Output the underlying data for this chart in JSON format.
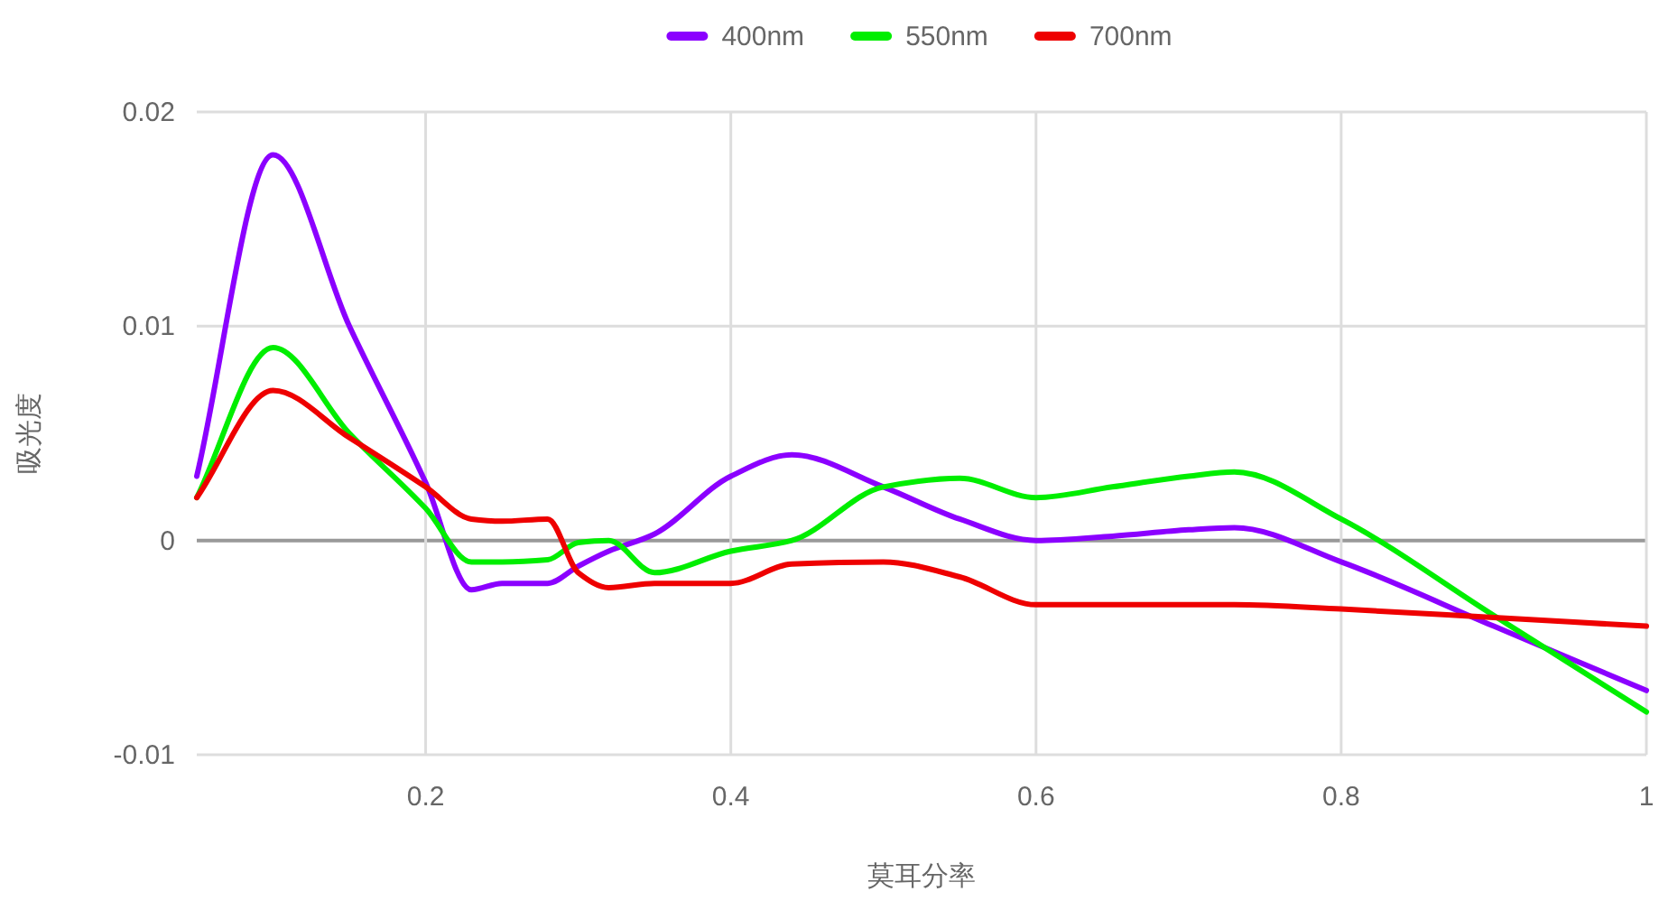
{
  "chart_data": {
    "type": "line",
    "xlabel": "莫耳分率",
    "ylabel": "吸光度",
    "xlim": [
      0.05,
      1
    ],
    "ylim": [
      -0.01,
      0.02
    ],
    "xticks": [
      0.2,
      0.4,
      0.6,
      0.8,
      1
    ],
    "yticks": [
      -0.01,
      0,
      0.01,
      0.02
    ],
    "grid": true,
    "legend": "top",
    "line_style": "solid",
    "x": [
      0.05,
      0.1,
      0.15,
      0.2,
      0.23,
      0.25,
      0.28,
      0.3,
      0.32,
      0.35,
      0.4,
      0.44,
      0.5,
      0.55,
      0.6,
      0.65,
      0.7,
      0.73,
      0.8,
      0.9,
      1
    ],
    "series": [
      {
        "name": "400nm",
        "color": "#8b00ff",
        "values": [
          0.003,
          0.018,
          0.01,
          0.0027,
          -0.0023,
          -0.002,
          -0.002,
          -0.0012,
          -0.0005,
          0.0003,
          0.003,
          0.004,
          0.0025,
          0.001,
          0,
          0.0002,
          0.0005,
          0.0006,
          -0.001,
          -0.004,
          -0.007
        ]
      },
      {
        "name": "550nm",
        "color": "#00ee00",
        "values": [
          0.002,
          0.009,
          0.005,
          0.0015,
          -0.001,
          -0.001,
          -0.0009,
          -0.0001,
          0,
          -0.0015,
          -0.0005,
          0,
          0.0025,
          0.0029,
          0.002,
          0.0025,
          0.003,
          0.0032,
          0.001,
          -0.0035,
          -0.008
        ]
      },
      {
        "name": "700nm",
        "color": "#ee0000",
        "values": [
          0.002,
          0.007,
          0.0048,
          0.0025,
          0.001,
          0.0009,
          0.001,
          -0.0015,
          -0.0022,
          -0.002,
          -0.002,
          -0.0011,
          -0.001,
          -0.0017,
          -0.003,
          -0.003,
          -0.003,
          -0.003,
          -0.0032,
          -0.0036,
          -0.004
        ]
      }
    ]
  }
}
